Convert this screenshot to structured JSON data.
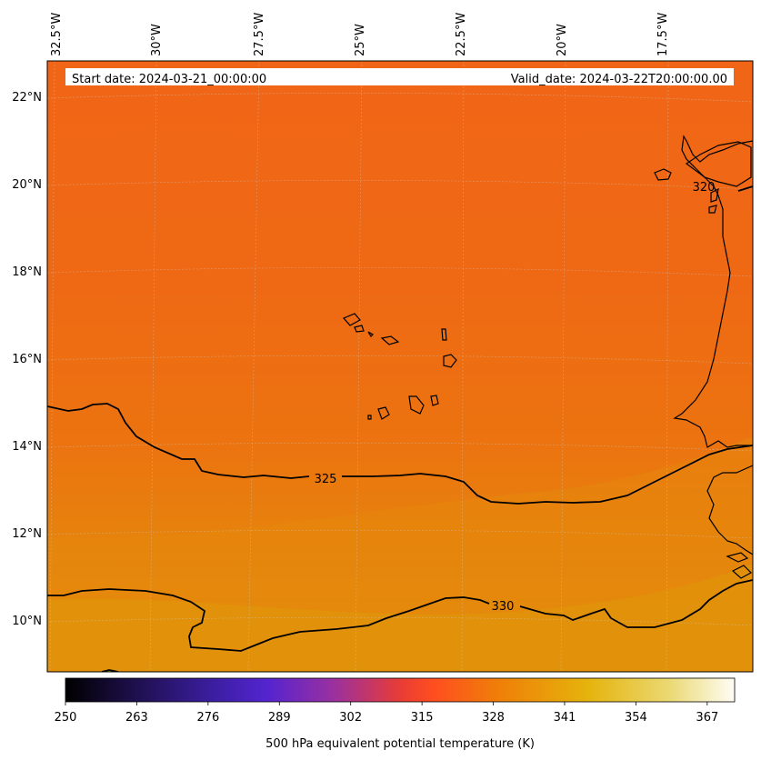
{
  "header": {
    "start_date": "Start date: 2024-03-21_00:00:00",
    "valid_date": "Valid_date: 2024-03-22T20:00:00.00"
  },
  "longitude_labels": [
    "32.5°W",
    "30°W",
    "27.5°W",
    "25°W",
    "22.5°W",
    "20°W",
    "17.5°W"
  ],
  "latitude_labels": [
    "22°N",
    "20°N",
    "18°N",
    "16°N",
    "14°N",
    "12°N",
    "10°N"
  ],
  "contours": [
    {
      "value": 320,
      "label": "320"
    },
    {
      "value": 325,
      "label": "325"
    },
    {
      "value": 330,
      "label": "330"
    }
  ],
  "colorbar": {
    "title": "500 hPa equivalent potential temperature (K)",
    "ticks": [
      "250",
      "263",
      "276",
      "289",
      "302",
      "315",
      "328",
      "341",
      "354",
      "367"
    ],
    "range": [
      250,
      372
    ],
    "colors": [
      "#000000",
      "#1d0f4a",
      "#4f24c8",
      "#8a2fa0",
      "#d9403a",
      "#ff4e1f",
      "#ef7f0a",
      "#e5b30c",
      "#e9d860",
      "#fffdf5"
    ]
  },
  "field_colors": {
    "north": "#f06414",
    "middle": "#ea780f",
    "south": "#e2920a"
  }
}
